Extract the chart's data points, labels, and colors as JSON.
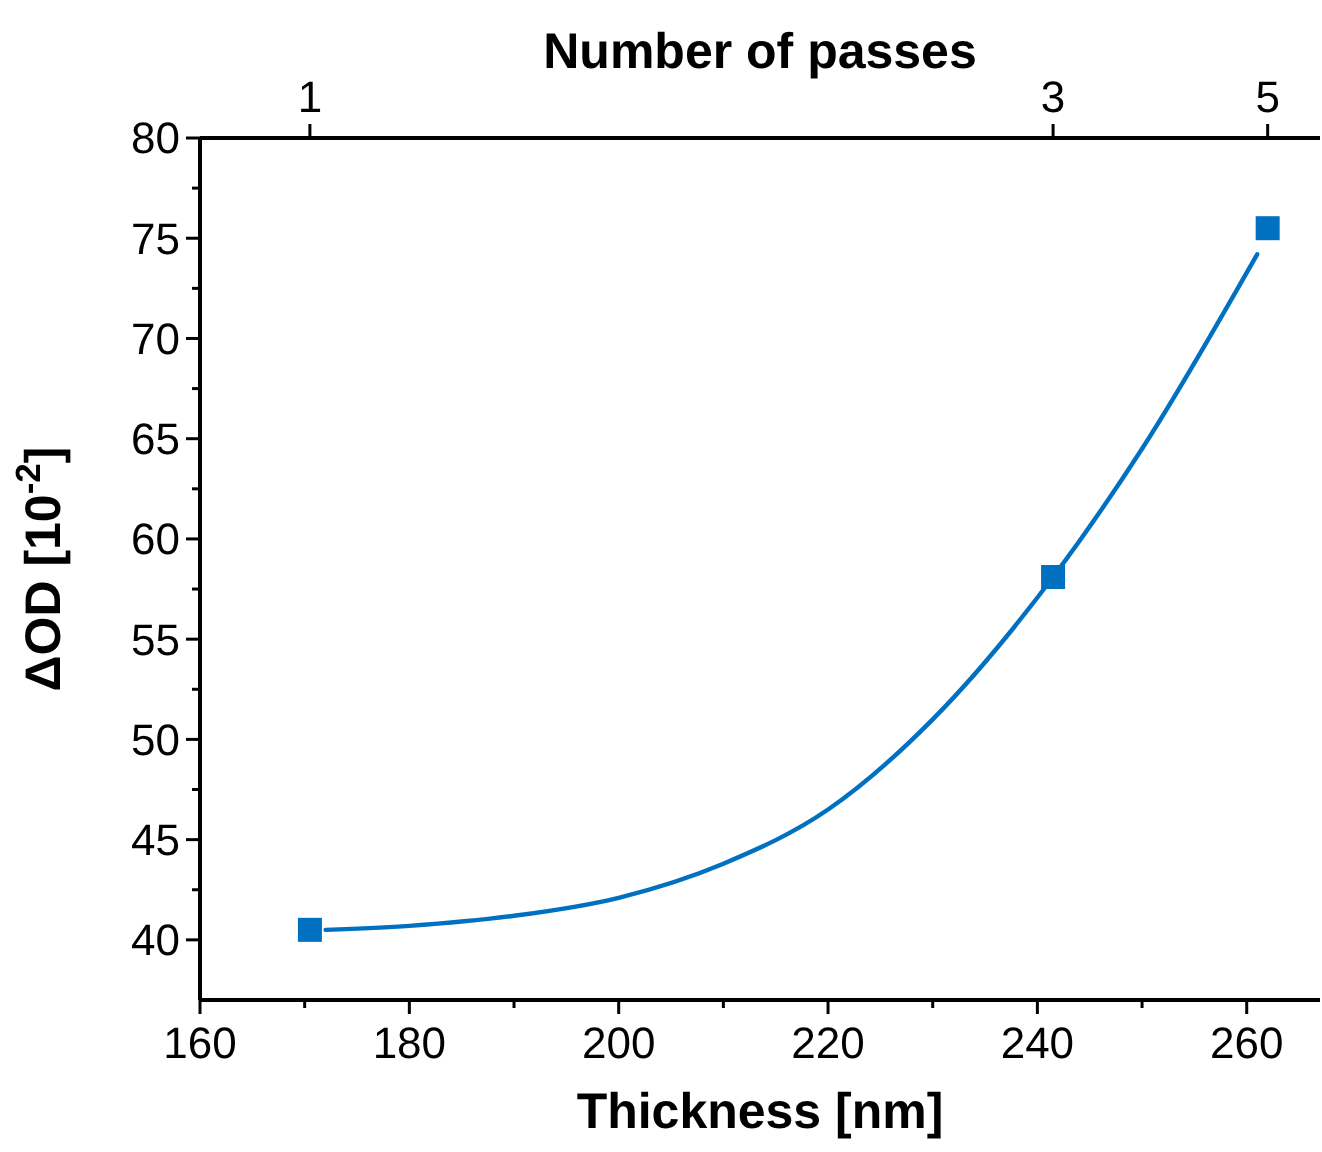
{
  "chart_data": {
    "type": "scatter",
    "xlabel": "Thickness [nm]",
    "ylabel": "ΔOD [10$^{-2}$]",
    "x2label": "Number of passes",
    "xlim": [
      160,
      267
    ],
    "xticks": [
      160,
      {
        "value": 170,
        "label": null
      },
      180,
      {
        "value": 190,
        "label": null
      },
      200,
      {
        "value": 210,
        "label": null
      },
      220,
      {
        "value": 230,
        "label": null
      },
      240,
      {
        "value": 250,
        "label": null
      },
      260
    ],
    "annotations": [
      {
        "text": "1",
        "x": 170.5
      },
      {
        "text": "3",
        "x": 241.5
      },
      {
        "text": "5",
        "x": 262
      }
    ],
    "ylim": [
      37,
      80
    ],
    "yticks": [
      40,
      {
        "value": 42.5,
        "label": null
      },
      45,
      {
        "value": 47.5,
        "label": null
      },
      50,
      {
        "value": 52.5,
        "label": null
      },
      55,
      {
        "value": 57.5,
        "label": null
      },
      60,
      {
        "value": 62.5,
        "label": null
      },
      65,
      {
        "value": 67.5,
        "label": null
      },
      70,
      {
        "value": 72.5,
        "label": null
      },
      75,
      {
        "value": 77.5,
        "label": null
      },
      80
    ],
    "grid": false,
    "series": [
      {
        "type": "scatter",
        "color": "#0070c0",
        "marker": "square",
        "x": [
          170.5,
          241.5,
          262
        ],
        "values": [
          40.5,
          58.1,
          75.5
        ]
      },
      {
        "type": "line",
        "color": "#0070c0",
        "marker": "none",
        "line_style": "solid",
        "x": [
          172,
          180,
          190,
          200,
          210,
          220,
          230,
          241.5,
          250,
          261
        ],
        "values": [
          40.5,
          40.7,
          41.2,
          42.1,
          43.8,
          46.5,
          51.0,
          58.1,
          64.5,
          74.2
        ]
      }
    ]
  }
}
